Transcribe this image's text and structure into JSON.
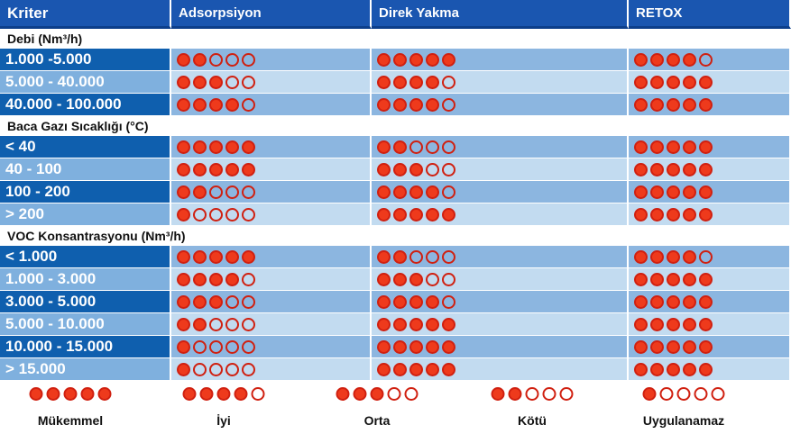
{
  "header": {
    "kriter": "Kriter",
    "cols": [
      "Adsorpsiyon",
      "Direk Yakma",
      "RETOX"
    ]
  },
  "sections": [
    {
      "title": "Debi (Nm³/h)",
      "rows": [
        {
          "label": "1.000 -5.000",
          "scores": [
            2,
            5,
            4
          ]
        },
        {
          "label": "5.000 - 40.000",
          "scores": [
            3,
            4,
            5
          ]
        },
        {
          "label": "40.000 - 100.000",
          "scores": [
            4,
            4,
            5
          ]
        }
      ]
    },
    {
      "title": "Baca Gazı Sıcaklığı (°C)",
      "rows": [
        {
          "label": "< 40",
          "scores": [
            5,
            2,
            5
          ]
        },
        {
          "label": "40 - 100",
          "scores": [
            5,
            3,
            5
          ]
        },
        {
          "label": "100 - 200",
          "scores": [
            2,
            4,
            5
          ]
        },
        {
          "label": "> 200",
          "scores": [
            1,
            5,
            5
          ]
        }
      ]
    },
    {
      "title": "VOC Konsantrasyonu (Nm³/h)",
      "rows": [
        {
          "label": "< 1.000",
          "scores": [
            5,
            2,
            4
          ]
        },
        {
          "label": "1.000 - 3.000",
          "scores": [
            4,
            3,
            5
          ]
        },
        {
          "label": "3.000 - 5.000",
          "scores": [
            3,
            4,
            5
          ]
        },
        {
          "label": "5.000 - 10.000",
          "scores": [
            2,
            5,
            5
          ]
        },
        {
          "label": "10.000 - 15.000",
          "scores": [
            1,
            5,
            5
          ]
        },
        {
          "label": "> 15.000",
          "scores": [
            1,
            5,
            5
          ]
        }
      ]
    }
  ],
  "legend": [
    {
      "name": "Mükemmel",
      "filled": 5
    },
    {
      "name": "İyi",
      "filled": 4
    },
    {
      "name": "Orta",
      "filled": 3
    },
    {
      "name": "Kötü",
      "filled": 2
    },
    {
      "name": "Uygulanamaz",
      "filled": 1
    }
  ],
  "colors": {
    "filled_dot": "#ee3a1c",
    "header": "#1a56b0"
  }
}
